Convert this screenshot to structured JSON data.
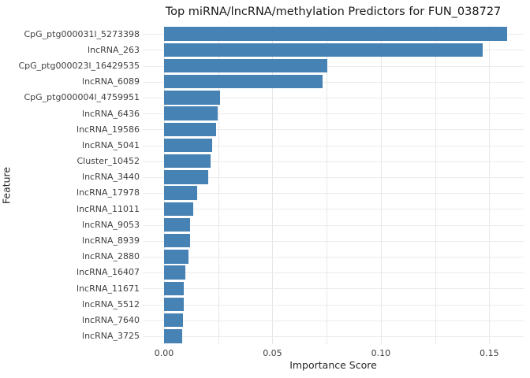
{
  "chart_data": {
    "type": "bar",
    "orientation": "horizontal",
    "title": "Top miRNA/lncRNA/methylation Predictors for FUN_038727",
    "xlabel": "Importance Score",
    "ylabel": "Feature",
    "categories": [
      "CpG_ptg000031l_5273398",
      "lncRNA_263",
      "CpG_ptg000023l_16429535",
      "lncRNA_6089",
      "CpG_ptg000004l_4759951",
      "lncRNA_6436",
      "lncRNA_19586",
      "lncRNA_5041",
      "Cluster_10452",
      "lncRNA_3440",
      "lncRNA_17978",
      "lncRNA_11011",
      "lncRNA_9053",
      "lncRNA_8939",
      "lncRNA_2880",
      "lncRNA_16407",
      "lncRNA_11671",
      "lncRNA_5512",
      "lncRNA_7640",
      "lncRNA_3725"
    ],
    "values": [
      0.1582,
      0.1469,
      0.0753,
      0.0731,
      0.0258,
      0.0247,
      0.024,
      0.0222,
      0.0215,
      0.0204,
      0.0153,
      0.0135,
      0.0121,
      0.0119,
      0.0113,
      0.0098,
      0.0092,
      0.0091,
      0.0088,
      0.0085
    ],
    "xlim": [
      -0.008,
      0.166
    ],
    "xticks": [
      0.0,
      0.05,
      0.1,
      0.15
    ],
    "xtick_labels": [
      "0.00",
      "0.05",
      "0.10",
      "0.15"
    ],
    "grid": true,
    "gridline_interval": 0.025,
    "legend": "none",
    "bar_color": "#4682B4",
    "grid_color": "#e7e7e7",
    "background_color": "#ffffff"
  }
}
